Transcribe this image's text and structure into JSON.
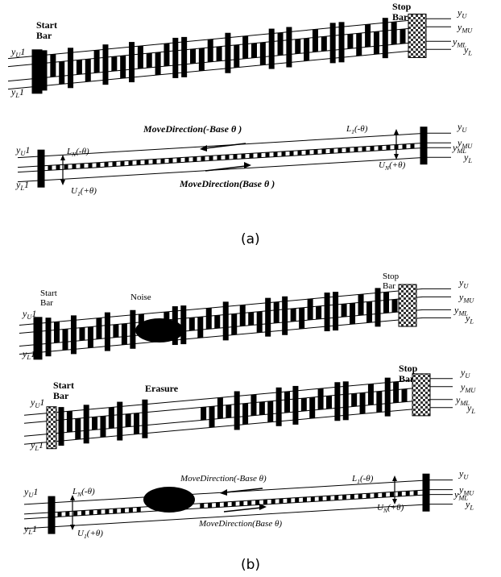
{
  "colors": {
    "ink": "#000000",
    "background": "#ffffff",
    "hatch": "#444444"
  },
  "panel_a": {
    "top": {
      "start_bar": "Start\nBar",
      "stop_bar": "Stop\nBar",
      "left_upper": "y_U1",
      "left_lower": "y_L1",
      "right_labels": [
        "y_U",
        "y_MU",
        "y_ML",
        "y_L"
      ]
    },
    "bottom": {
      "move_neg": "MoveDirection(-Base θ )",
      "move_pos": "MoveDirection(Base θ )",
      "l_n": "L_N(-θ)",
      "u_1": "U_1(+θ)",
      "l_1": "L_1(-θ)",
      "u_n": "U_N(+θ)",
      "left_upper": "y_U1",
      "left_lower": "y_L1",
      "right_labels": [
        "y_U",
        "y_MU",
        "y_ML",
        "y_L"
      ]
    },
    "caption": "(a)"
  },
  "panel_b": {
    "noise": {
      "start_bar": "Start\nBar",
      "stop_bar": "Stop\nBar",
      "defect_label": "Noise",
      "left_upper": "y_U1",
      "left_lower": "y_L1",
      "right_labels": [
        "y_U",
        "y_MU",
        "y_ML",
        "y_L"
      ]
    },
    "erasure": {
      "start_bar": "Start\nBar",
      "stop_bar": "Stop\nBar",
      "defect_label": "Erasure",
      "left_upper": "y_U1",
      "left_lower": "y_L1",
      "right_labels": [
        "y_U",
        "y_MU",
        "y_ML",
        "y_L"
      ]
    },
    "bottom": {
      "move_neg": "MoveDirection(-Base θ)",
      "move_pos": "MoveDirection(Base θ)",
      "l_n": "L_N(-θ)",
      "u_1": "U_1(+θ)",
      "l_1": "L_1(-θ)",
      "u_n": "U_N(+θ)",
      "left_upper": "y_U1",
      "left_lower": "y_L1",
      "right_labels": [
        "y_U",
        "y_MU",
        "y_ML",
        "y_L"
      ]
    },
    "caption": "(b)"
  }
}
